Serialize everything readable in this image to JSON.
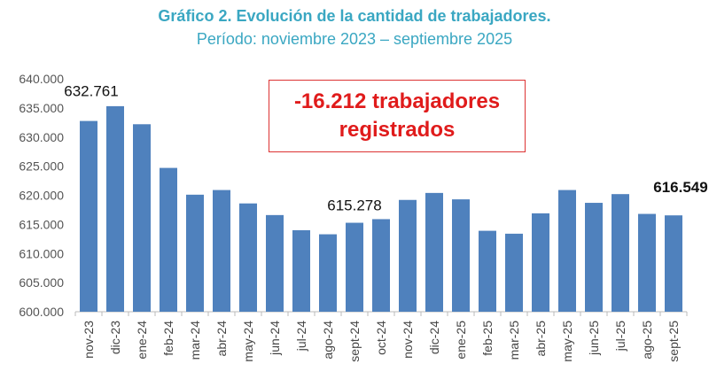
{
  "chart_data": {
    "type": "bar",
    "title": "Gráfico 2. Evolución de la cantidad de trabajadores.",
    "subtitle": "Período: noviembre 2023 – septiembre 2025",
    "categories": [
      "nov-23",
      "dic-23",
      "ene-24",
      "feb-24",
      "mar-24",
      "abr-24",
      "may-24",
      "jun-24",
      "jul-24",
      "ago-24",
      "sept-24",
      "oct-24",
      "nov-24",
      "dic-24",
      "ene-25",
      "feb-25",
      "mar-25",
      "abr-25",
      "may-25",
      "jun-25",
      "jul-25",
      "ago-25",
      "sept-25"
    ],
    "values": [
      632761,
      635300,
      632200,
      624700,
      620100,
      620900,
      618600,
      616600,
      614000,
      613300,
      615278,
      615900,
      619200,
      620400,
      619300,
      613900,
      613400,
      616900,
      620900,
      618700,
      620200,
      616800,
      616549
    ],
    "data_labels": [
      {
        "category": "nov-23",
        "text": "632.761",
        "bold": false
      },
      {
        "category": "sept-24",
        "text": "615.278",
        "bold": false
      },
      {
        "category": "sept-25",
        "text": "616.549",
        "bold": true
      }
    ],
    "yticks": [
      "600.000",
      "605.000",
      "610.000",
      "615.000",
      "620.000",
      "625.000",
      "630.000",
      "635.000",
      "640.000"
    ],
    "ylim": [
      600000,
      640000
    ],
    "xlabel": "",
    "ylabel": "",
    "grid": false,
    "bar_color": "#4f81bd",
    "annotation": {
      "line1": "-16.212 trabajadores",
      "line2": "registrados",
      "color": "#e01b1b"
    }
  }
}
